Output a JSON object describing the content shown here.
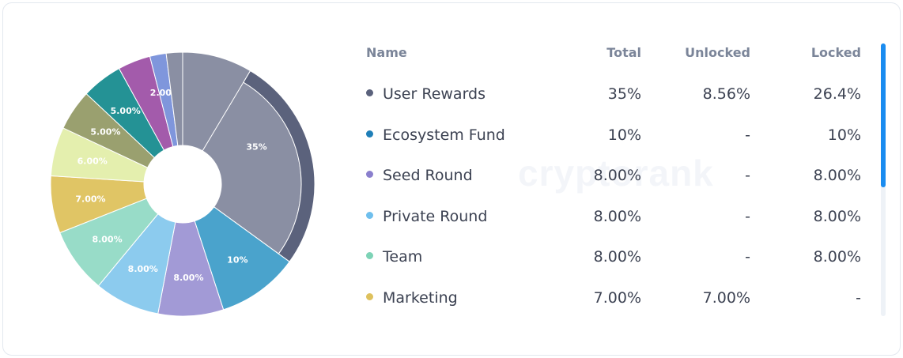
{
  "watermark": "cryptorank",
  "table": {
    "headers": {
      "name": "Name",
      "total": "Total",
      "unlocked": "Unlocked",
      "locked": "Locked"
    },
    "rows": [
      {
        "name": "User Rewards",
        "total": "35%",
        "unlocked": "8.56%",
        "locked": "26.4%",
        "color": "#5b627c"
      },
      {
        "name": "Ecosystem Fund",
        "total": "10%",
        "unlocked": "-",
        "locked": "10%",
        "color": "#1f7fb8"
      },
      {
        "name": "Seed Round",
        "total": "8.00%",
        "unlocked": "-",
        "locked": "8.00%",
        "color": "#8a7fcd"
      },
      {
        "name": "Private Round",
        "total": "8.00%",
        "unlocked": "-",
        "locked": "8.00%",
        "color": "#6fbfed"
      },
      {
        "name": "Team",
        "total": "8.00%",
        "unlocked": "-",
        "locked": "8.00%",
        "color": "#7dd3b6"
      },
      {
        "name": "Marketing",
        "total": "7.00%",
        "unlocked": "7.00%",
        "locked": "-",
        "color": "#dec15d"
      }
    ]
  },
  "chart_data": {
    "type": "pie",
    "slices": [
      {
        "value": 35,
        "label": "35%",
        "color": "#8a8fa3",
        "locked_color": "#5b627c",
        "unlocked_fraction": 0.2446
      },
      {
        "value": 10,
        "label": "10%",
        "color": "#4aa3cc"
      },
      {
        "value": 8,
        "label": "8.00%",
        "color": "#a29ad6"
      },
      {
        "value": 8,
        "label": "8.00%",
        "color": "#8ccbee"
      },
      {
        "value": 8,
        "label": "8.00%",
        "color": "#98dcc8"
      },
      {
        "value": 7,
        "label": "7.00%",
        "color": "#e0c565"
      },
      {
        "value": 6,
        "label": "6.00%",
        "color": "#e4efae"
      },
      {
        "value": 5,
        "label": "5.00%",
        "color": "#9aa06f"
      },
      {
        "value": 5,
        "label": "5.00%",
        "color": "#249295"
      },
      {
        "value": 4,
        "label": "",
        "color": "#a35bab"
      },
      {
        "value": 2,
        "label": "2.00%",
        "color": "#7f96dc"
      },
      {
        "value": 2,
        "label": "",
        "color": "#8a8fa3"
      }
    ]
  }
}
